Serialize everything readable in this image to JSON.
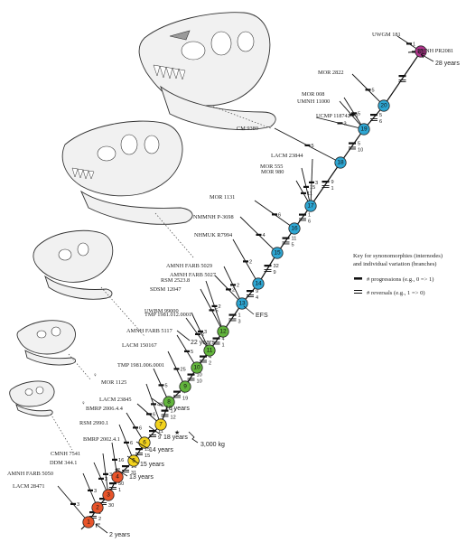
{
  "colors": {
    "orange": "#e8542a",
    "yellow": "#f2d21d",
    "green": "#62b43c",
    "blue": "#2ea6d2",
    "purple": "#b2348e",
    "line": "#111111"
  },
  "nodes": [
    {
      "id": "1",
      "color": "orange"
    },
    {
      "id": "2",
      "color": "orange"
    },
    {
      "id": "3",
      "color": "orange"
    },
    {
      "id": "4",
      "color": "orange"
    },
    {
      "id": "5",
      "color": "yellow"
    },
    {
      "id": "6",
      "color": "yellow"
    },
    {
      "id": "7",
      "color": "yellow"
    },
    {
      "id": "8",
      "color": "green"
    },
    {
      "id": "9",
      "color": "green"
    },
    {
      "id": "10",
      "color": "green"
    },
    {
      "id": "11",
      "color": "green"
    },
    {
      "id": "12",
      "color": "green"
    },
    {
      "id": "13",
      "color": "blue"
    },
    {
      "id": "14",
      "color": "blue"
    },
    {
      "id": "15",
      "color": "blue"
    },
    {
      "id": "16",
      "color": "blue"
    },
    {
      "id": "17",
      "color": "blue"
    },
    {
      "id": "18",
      "color": "blue"
    },
    {
      "id": "19",
      "color": "blue"
    },
    {
      "id": "20",
      "color": "blue"
    },
    {
      "id": "21",
      "color": "purple"
    }
  ],
  "specimens": [
    {
      "name": "LACM 28471",
      "count": "3"
    },
    {
      "name": "AMNH FARB 5050",
      "count": "3"
    },
    {
      "name": "DDM 344.1",
      "count": "3"
    },
    {
      "name": "CMNH 7541",
      "count": "3"
    },
    {
      "name": "BMRP 2002.4.1",
      "count": "16"
    },
    {
      "name": "RSM 2990.1",
      "count": "6"
    },
    {
      "name": "BMRP 2006.4.4",
      "count": "6"
    },
    {
      "name": "LACM 23845",
      "count": "6"
    },
    {
      "name": "MOR 1125",
      "count": "48"
    },
    {
      "name": "TMP 1981.006.0001",
      "count": "5"
    },
    {
      "name": "LACM 150167",
      "count": "25"
    },
    {
      "name": "AMNH FARB 5117",
      "count": "5"
    },
    {
      "name": "TMP 1981.012.0001",
      "count": "2"
    },
    {
      "name": "UWBM 99000",
      "count": "3"
    },
    {
      "name": "SDSM 12047",
      "count": "5"
    },
    {
      "name": "RSM 2523.8",
      "count": "2"
    },
    {
      "name": "AMNH FARB 5027",
      "count": "2"
    },
    {
      "name": "AMNH FARB 5029",
      "count": "2"
    },
    {
      "name": "NHMUK R7994",
      "count": "2"
    },
    {
      "name": "NMMNH P-3698",
      "count": "4"
    },
    {
      "name": "MOR 1131",
      "count": "6"
    },
    {
      "name": "MOR 980",
      "count": "11"
    },
    {
      "name": "MOR 555",
      "count": "15"
    },
    {
      "name": "LACM 23844",
      "count": "3"
    },
    {
      "name": "CM 9380",
      "count": "5"
    },
    {
      "name": "UCMP 118742",
      "count": "3"
    },
    {
      "name": "UMNH 11000",
      "count": "1"
    },
    {
      "name": "MOR 008",
      "count": "5"
    },
    {
      "name": "MOR 2822",
      "count": "5"
    },
    {
      "name": "UWGM 181",
      "count": "1"
    },
    {
      "name": "FMNH PR2081",
      "count": "9"
    }
  ],
  "extra_numbers": [
    "1",
    "2",
    "3",
    "30",
    "50",
    "1",
    "16",
    "31",
    "15",
    "15",
    "11",
    "9",
    "17",
    "12",
    "4",
    "19",
    "10",
    "10",
    "4",
    "2",
    "4",
    "1",
    "1",
    "3",
    "9",
    "4",
    "32",
    "9",
    "11",
    "5",
    "1",
    "6",
    "9",
    "1",
    "5",
    "10",
    "5",
    "6"
  ],
  "annotations": {
    "age_2": "2 years",
    "age_13": "13 years",
    "age_14": "14 years",
    "age_15": "15 years",
    "age_18a": "18 years",
    "age_18b": "18 years",
    "age_22": "22 years",
    "age_28": "28 years",
    "mass": "3,000 kg",
    "efs": "EFS",
    "female_symbol": "♀",
    "star": "★"
  },
  "key": {
    "title_line1": "Key for synonomorphies (internodes)",
    "title_line2": "and individual variation (branches)",
    "progressions": "# progressions (e.g., 0 => 1)",
    "reversals": "# reversals (e.g., 1 => 0)"
  }
}
